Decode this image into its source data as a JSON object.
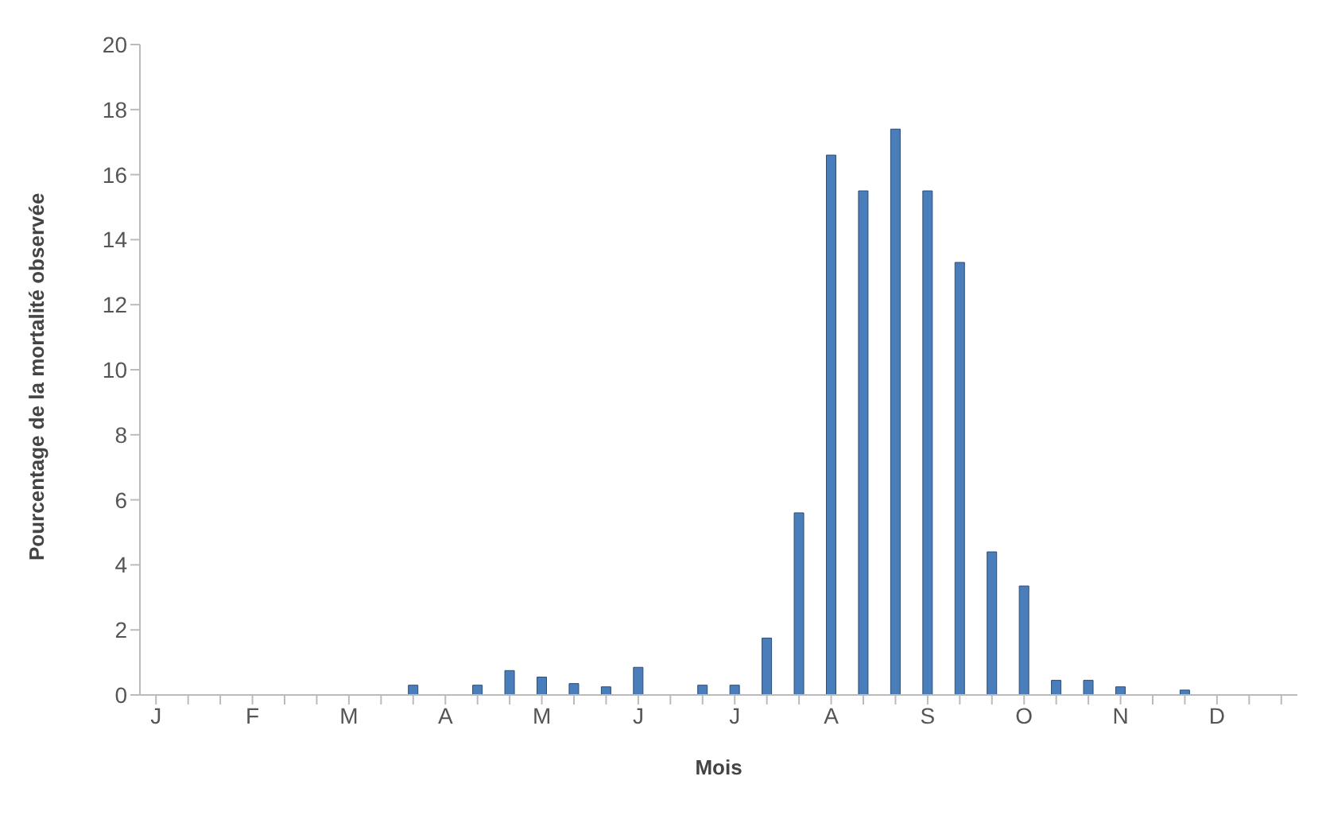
{
  "chart_data": {
    "type": "bar",
    "xlabel": "Mois",
    "ylabel": "Pourcentage de la mortalité observée",
    "categories": [
      "J",
      null,
      null,
      "F",
      null,
      null,
      "M",
      null,
      null,
      "A",
      null,
      null,
      "M",
      null,
      null,
      "J",
      null,
      null,
      "J",
      null,
      null,
      "A",
      null,
      null,
      "S",
      null,
      null,
      "O",
      null,
      null,
      "N",
      null,
      null,
      "D",
      null,
      null
    ],
    "values": [
      0,
      0,
      0,
      0,
      0,
      0,
      0,
      0,
      0.3,
      0,
      0.3,
      0.75,
      0.55,
      0.35,
      0.25,
      0.85,
      0,
      0.3,
      0.3,
      1.75,
      5.6,
      16.6,
      15.5,
      17.4,
      15.5,
      13.3,
      4.4,
      3.35,
      0.45,
      0.45,
      0.25,
      0,
      0.15,
      0,
      0,
      0
    ],
    "color": "#4a7ebb",
    "ylim": [
      0,
      20
    ],
    "yticks": [
      0,
      2,
      4,
      6,
      8,
      10,
      12,
      14,
      16,
      18,
      20
    ],
    "grid": false,
    "legend": false
  }
}
